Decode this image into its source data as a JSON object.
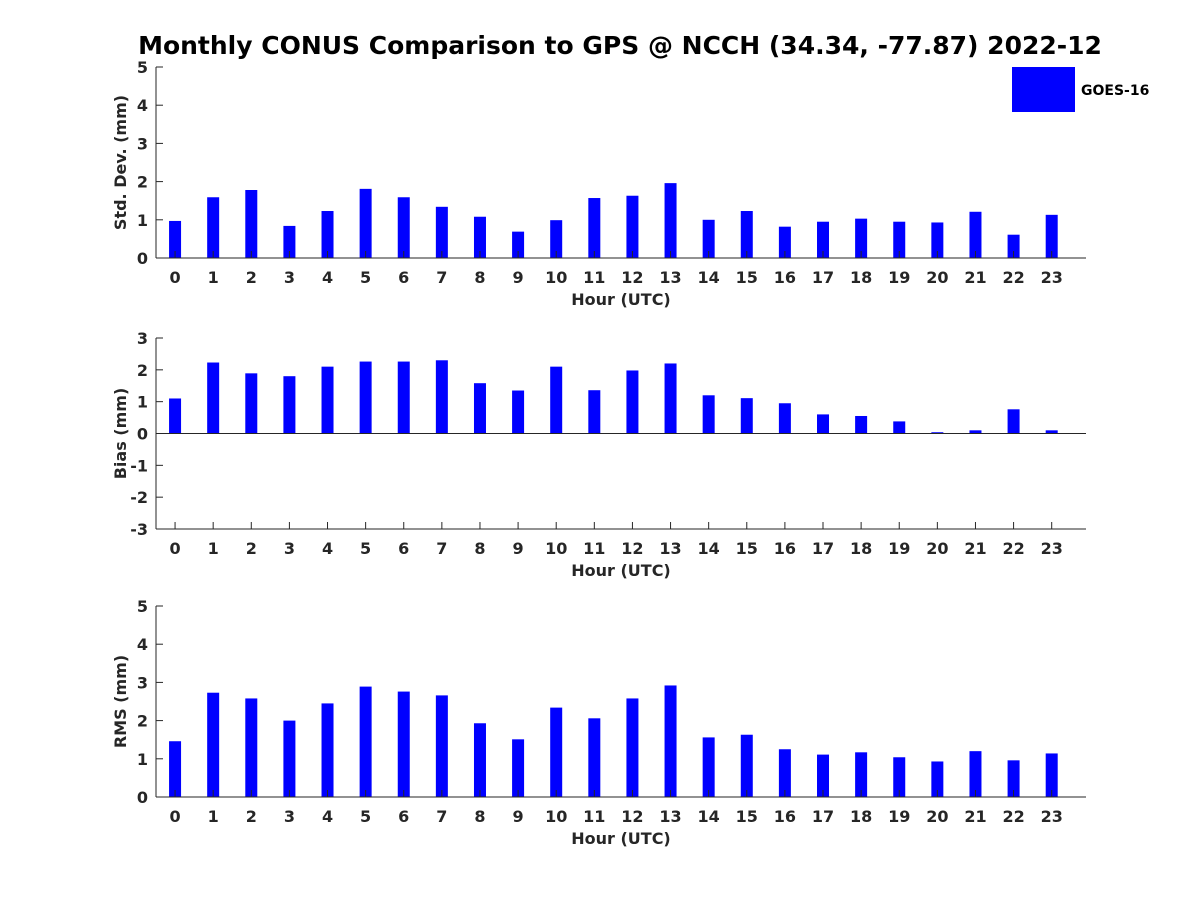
{
  "figure_title": "Monthly CONUS Comparison to GPS @ NCCH (34.34, -77.87) 2022-12",
  "legend": {
    "label": "GOES-16",
    "placement": "top-right",
    "color": "#0000ff"
  },
  "bar_color": "#0000ff",
  "chart_data": [
    {
      "type": "bar",
      "xlabel": "Hour (UTC)",
      "ylabel": "Std. Dev. (mm)",
      "ylim": [
        0,
        5
      ],
      "yticks": [
        0,
        1,
        2,
        3,
        4,
        5
      ],
      "categories": [
        "0",
        "1",
        "2",
        "3",
        "4",
        "5",
        "6",
        "7",
        "8",
        "9",
        "10",
        "11",
        "12",
        "13",
        "14",
        "15",
        "16",
        "17",
        "18",
        "19",
        "20",
        "21",
        "22",
        "23"
      ],
      "series": [
        {
          "name": "GOES-16",
          "values": [
            0.97,
            1.59,
            1.78,
            0.84,
            1.23,
            1.81,
            1.59,
            1.34,
            1.08,
            0.69,
            0.99,
            1.57,
            1.63,
            1.96,
            1.0,
            1.23,
            0.82,
            0.95,
            1.03,
            0.95,
            0.93,
            1.21,
            0.61,
            1.13
          ]
        }
      ]
    },
    {
      "type": "bar",
      "xlabel": "Hour (UTC)",
      "ylabel": "Bias (mm)",
      "ylim": [
        -3,
        3
      ],
      "yticks": [
        -3,
        -2,
        -1,
        0,
        1,
        2,
        3
      ],
      "categories": [
        "0",
        "1",
        "2",
        "3",
        "4",
        "5",
        "6",
        "7",
        "8",
        "9",
        "10",
        "11",
        "12",
        "13",
        "14",
        "15",
        "16",
        "17",
        "18",
        "19",
        "20",
        "21",
        "22",
        "23"
      ],
      "series": [
        {
          "name": "GOES-16",
          "values": [
            1.1,
            2.23,
            1.89,
            1.8,
            2.1,
            2.26,
            2.26,
            2.3,
            1.58,
            1.35,
            2.1,
            1.36,
            1.98,
            2.2,
            1.2,
            1.11,
            0.95,
            0.6,
            0.55,
            0.38,
            0.04,
            0.1,
            0.76,
            0.1
          ]
        }
      ]
    },
    {
      "type": "bar",
      "xlabel": "Hour (UTC)",
      "ylabel": "RMS (mm)",
      "ylim": [
        0,
        5
      ],
      "yticks": [
        0,
        1,
        2,
        3,
        4,
        5
      ],
      "categories": [
        "0",
        "1",
        "2",
        "3",
        "4",
        "5",
        "6",
        "7",
        "8",
        "9",
        "10",
        "11",
        "12",
        "13",
        "14",
        "15",
        "16",
        "17",
        "18",
        "19",
        "20",
        "21",
        "22",
        "23"
      ],
      "series": [
        {
          "name": "GOES-16",
          "values": [
            1.46,
            2.73,
            2.58,
            2.0,
            2.45,
            2.89,
            2.76,
            2.66,
            1.93,
            1.51,
            2.34,
            2.06,
            2.58,
            2.92,
            1.56,
            1.63,
            1.25,
            1.11,
            1.17,
            1.04,
            0.93,
            1.2,
            0.96,
            1.14
          ]
        }
      ]
    }
  ]
}
